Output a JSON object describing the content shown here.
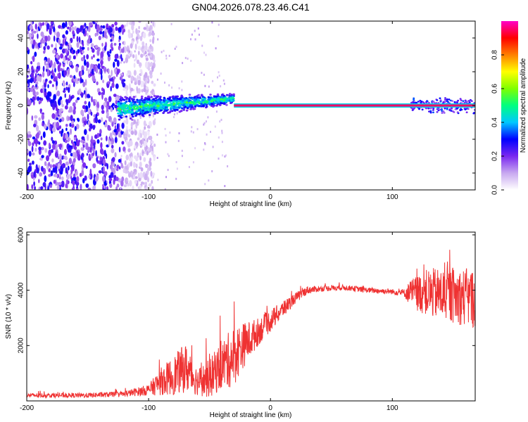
{
  "figure_title": "GN04.2026.078.23.46.C41",
  "chart_data": [
    {
      "type": "heatmap",
      "title": "GN04.2026.078.23.46.C41",
      "xlabel": "Height of straight line (km)",
      "ylabel": "Frequency (Hz)",
      "xlim": [
        -200,
        168
      ],
      "ylim": [
        -50,
        50
      ],
      "xticks": [
        -200,
        -100,
        0,
        100
      ],
      "yticks": [
        -40,
        -20,
        0,
        20,
        40
      ],
      "colorbar": {
        "label": "Normalized spectral amplitude",
        "range": [
          0,
          1
        ],
        "ticks": [
          0.0,
          0.2,
          0.4,
          0.6,
          0.8
        ],
        "colors": [
          "#ffffff",
          "#c8a8f0",
          "#7a28f0",
          "#0000ff",
          "#00c8ff",
          "#00ff80",
          "#80ff00",
          "#ffff00",
          "#ff8000",
          "#ff0000",
          "#ff00c8"
        ]
      },
      "features": {
        "noise_region_km": [
          -200,
          -105
        ],
        "spread_region_km": [
          -125,
          -30
        ],
        "spread_center_hz_start": -2,
        "spread_center_hz_end": 4,
        "tone_line_km": [
          -30,
          168
        ],
        "tone_frequency_hz": 0,
        "tone_amplitude": 0.95,
        "late_spread_km": [
          115,
          168
        ]
      }
    },
    {
      "type": "line",
      "title": "",
      "xlabel": "Height of straight line (km)",
      "ylabel": "SNR (10 * v/v)",
      "xlim": [
        -200,
        168
      ],
      "ylim": [
        0,
        6100
      ],
      "xticks": [
        -200,
        -100,
        0,
        100
      ],
      "yticks": [
        2000,
        4000,
        6000
      ],
      "series": [
        {
          "name": "SNR",
          "color": "#ef3232",
          "x": [
            -200,
            -150,
            -120,
            -100,
            -90,
            -80,
            -70,
            -60,
            -50,
            -40,
            -30,
            -25,
            -10,
            0,
            10,
            20,
            30,
            40,
            60,
            80,
            100,
            110,
            115,
            130,
            150,
            168
          ],
          "y": [
            200,
            200,
            250,
            400,
            700,
            900,
            1200,
            700,
            800,
            1300,
            1600,
            1900,
            2500,
            2900,
            3300,
            3700,
            4000,
            4050,
            4100,
            4000,
            3950,
            3900,
            3900,
            3900,
            3800,
            3700
          ],
          "noise_amplitude": [
            80,
            90,
            100,
            200,
            500,
            700,
            900,
            500,
            700,
            900,
            1100,
            900,
            500,
            400,
            300,
            200,
            150,
            100,
            100,
            100,
            100,
            150,
            500,
            900,
            1000,
            1100
          ]
        }
      ]
    }
  ]
}
